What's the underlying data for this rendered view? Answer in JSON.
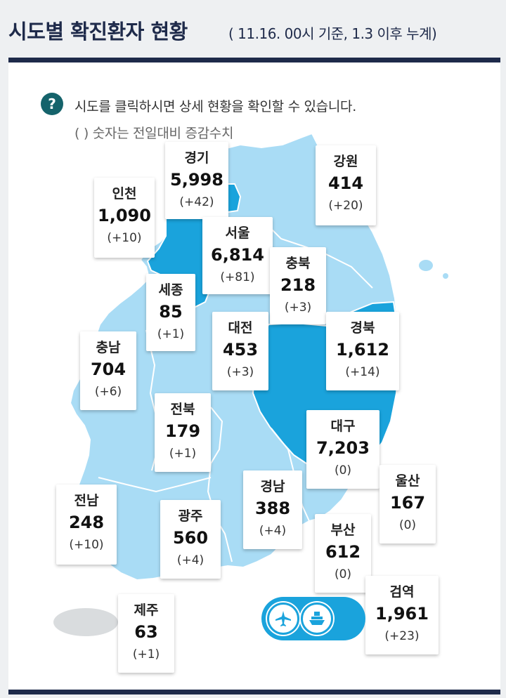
{
  "header": {
    "title": "시도별 확진환자 현황",
    "subtitle": "( 11.16. 00시 기준, 1.3 이후 누계)"
  },
  "info": {
    "help_symbol": "?",
    "help_text": "시도를 클릭하시면 상세 현황을 확인할 수 있습니다.",
    "note_text": "( ) 숫자는 전일대비 증감수치"
  },
  "colors": {
    "map_light": "#a9dcf5",
    "map_dark": "#1aa3dc",
    "header_text": "#1e2a4a",
    "rule": "#1e2a4a",
    "help_badge": "#15636b",
    "jeju_gray": "#d9dcde"
  },
  "regions": [
    {
      "name": "인천",
      "count": "1,090",
      "delta": "(+10)"
    },
    {
      "name": "경기",
      "count": "5,998",
      "delta": "(+42)"
    },
    {
      "name": "강원",
      "count": "414",
      "delta": "(+20)"
    },
    {
      "name": "서울",
      "count": "6,814",
      "delta": "(+81)"
    },
    {
      "name": "충북",
      "count": "218",
      "delta": "(+3)"
    },
    {
      "name": "세종",
      "count": "85",
      "delta": "(+1)"
    },
    {
      "name": "대전",
      "count": "453",
      "delta": "(+3)"
    },
    {
      "name": "경북",
      "count": "1,612",
      "delta": "(+14)"
    },
    {
      "name": "충남",
      "count": "704",
      "delta": "(+6)"
    },
    {
      "name": "전북",
      "count": "179",
      "delta": "(+1)"
    },
    {
      "name": "대구",
      "count": "7,203",
      "delta": "(0)"
    },
    {
      "name": "울산",
      "count": "167",
      "delta": "(0)"
    },
    {
      "name": "경남",
      "count": "388",
      "delta": "(+4)"
    },
    {
      "name": "전남",
      "count": "248",
      "delta": "(+10)"
    },
    {
      "name": "광주",
      "count": "560",
      "delta": "(+4)"
    },
    {
      "name": "부산",
      "count": "612",
      "delta": "(0)"
    },
    {
      "name": "검역",
      "count": "1,961",
      "delta": "(+23)"
    },
    {
      "name": "제주",
      "count": "63",
      "delta": "(+1)"
    }
  ],
  "transport": {
    "icons": [
      "airplane-icon",
      "ship-icon"
    ]
  }
}
